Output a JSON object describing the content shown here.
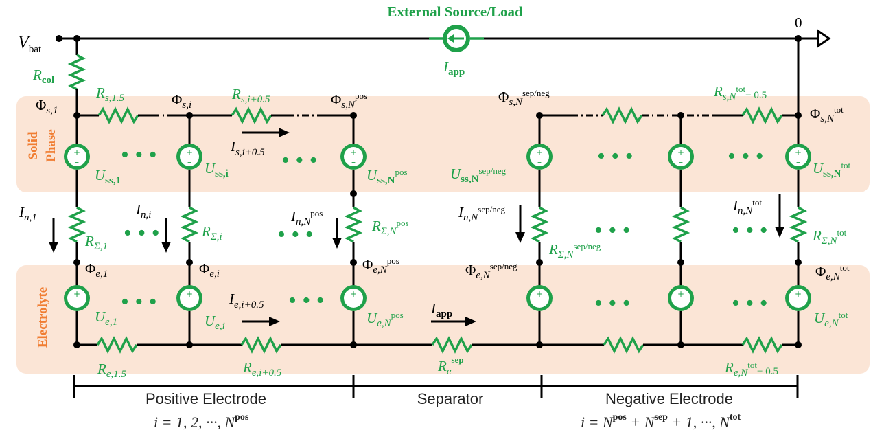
{
  "title": "External Source/Load",
  "labels": {
    "vbat": "V",
    "vbat_sub": "bat",
    "zero": "0",
    "iapp_top": "I",
    "iapp_sub": "app",
    "rcol": "R",
    "rcol_sub": "col",
    "phi_s1": "Φ",
    "phi_s1_sub": "s,1",
    "phi_si": "Φ",
    "phi_si_sub": "s,i",
    "phi_snpos": "Φ",
    "phi_snpos_sub": "s,N",
    "phi_snpos_sup": "pos",
    "phi_snsep": "Φ",
    "phi_snsep_sub": "s,N",
    "phi_snsep_sup": "sep/neg",
    "phi_sntot": "Φ",
    "phi_sntot_sub": "s,N",
    "phi_sntot_sup": "tot",
    "rs15": "R",
    "rs15_sub": "s,1.5",
    "rsi05": "R",
    "rsi05_sub": "s,i+0.5",
    "rsntot": "R",
    "rsntot_sub": "s,N",
    "rsntot_sup": "tot",
    "rsntot_end": "− 0.5",
    "isi05": "I",
    "isi05_sub": "s,i+0.5",
    "uss1": "U",
    "uss1_sub": "ss,1",
    "ussi": "U",
    "ussi_sub": "ss,i",
    "ussnpos": "U",
    "ussnpos_sub": "ss,N",
    "ussnpos_sup": "pos",
    "ussnsep": "U",
    "ussnsep_sub": "ss,N",
    "ussnsep_sup": "sep/neg",
    "ussntot": "U",
    "ussntot_sub": "ss,N",
    "ussntot_sup": "tot",
    "in1": "I",
    "in1_sub": "n,1",
    "ini": "I",
    "ini_sub": "n,i",
    "innpos": "I",
    "innpos_sub": "n,N",
    "innpos_sup": "pos",
    "innsep": "I",
    "innsep_sub": "n,N",
    "innsep_sup": "sep/neg",
    "inntot": "I",
    "inntot_sub": "n,N",
    "inntot_sup": "tot",
    "rsig1": "R",
    "rsig1_sub": "Σ,1",
    "rsigi": "R",
    "rsigi_sub": "Σ,i",
    "rsignpos": "R",
    "rsignpos_sub": "Σ,N",
    "rsignpos_sup": "pos",
    "rsignsep": "R",
    "rsignsep_sub": "Σ,N",
    "rsignsep_sup": "sep/neg",
    "rsigntot": "R",
    "rsigntot_sub": "Σ,N",
    "rsigntot_sup": "tot",
    "phie1": "Φ",
    "phie1_sub": "e,1",
    "phiei": "Φ",
    "phiei_sub": "e,i",
    "phienpos": "Φ",
    "phienpos_sub": "e,N",
    "phienpos_sup": "pos",
    "phiensep": "Φ",
    "phiensep_sub": "e,N",
    "phiensep_sup": "sep/neg",
    "phientot": "Φ",
    "phientot_sub": "e,N",
    "phientot_sup": "tot",
    "ue1": "U",
    "ue1_sub": "e,1",
    "uei": "U",
    "uei_sub": "e,i",
    "uenpos": "U",
    "uenpos_sub": "e,N",
    "uenpos_sup": "pos",
    "uentot": "U",
    "uentot_sub": "e,N",
    "uentot_sup": "tot",
    "iei05": "I",
    "iei05_sub": "e,i+0.5",
    "iapp_mid": "I",
    "iapp_mid_sub": "app",
    "re15": "R",
    "re15_sub": "e,1.5",
    "rei05": "R",
    "rei05_sub": "e,i+0.5",
    "resep": "R",
    "resep_sub": "e",
    "resep_sup": "sep",
    "rentot": "R",
    "rentot_sub": "e,N",
    "rentot_sup": "tot",
    "rentot_end": "− 0.5",
    "dots": "• • •",
    "solid1": "Solid",
    "solid2": "Phase",
    "electrolyte": "Electrolyte"
  },
  "regions": {
    "positive": "Positive Electrode",
    "positive_range": "i = 1, 2, ···, N",
    "positive_range_sup": "pos",
    "separator": "Separator",
    "negative": "Negative Electrode",
    "negative_range_a": "i = N",
    "negative_range_sup1": "pos",
    "negative_range_b": " + N",
    "negative_range_sup2": "sep",
    "negative_range_c": " + 1, ···, N",
    "negative_range_sup3": "tot"
  },
  "colors": {
    "band": "#fbe5d6",
    "green": "#1fa14a",
    "orange": "#f07d32",
    "wire": "#000000"
  }
}
